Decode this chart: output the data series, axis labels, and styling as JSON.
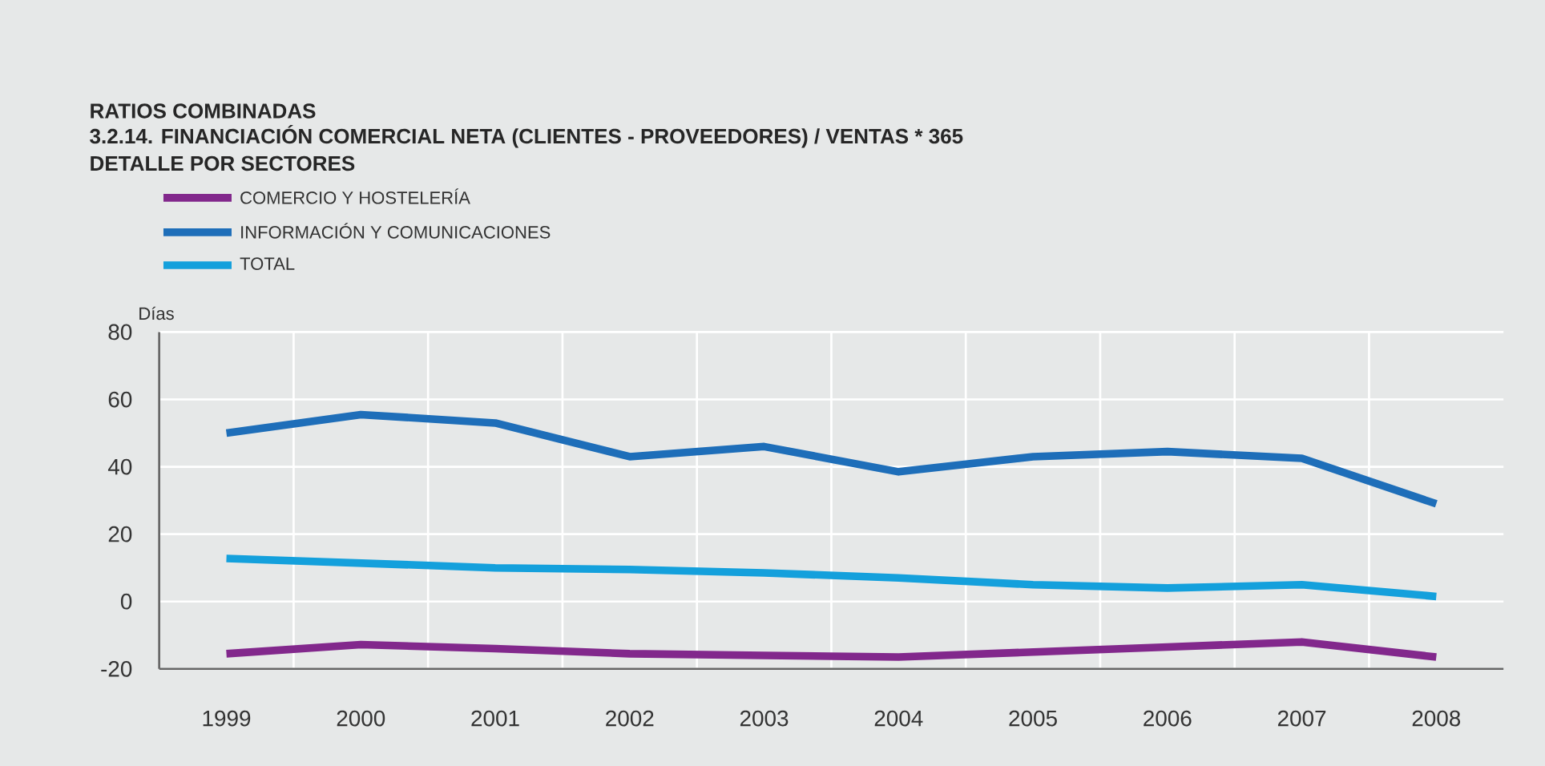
{
  "chart_data": {
    "type": "line",
    "title": "RATIOS COMBINADAS",
    "subtitle": "3.2.14. FINANCIACIÓN COMERCIAL NETA (CLIENTES - PROVEEDORES) / VENTAS * 365\nDETALLE POR SECTORES",
    "ylabel": "Días",
    "categories": [
      "1999",
      "2000",
      "2001",
      "2002",
      "2003",
      "2004",
      "2005",
      "2006",
      "2007",
      "2008"
    ],
    "series": [
      {
        "name": "COMERCIO Y HOSTELERÍA",
        "color": "#82288c",
        "values": [
          -15.5,
          -12.8,
          -14,
          -15.5,
          -16,
          -16.5,
          -15,
          -13.5,
          -12,
          -16.5
        ]
      },
      {
        "name": "INFORMACIÓN Y COMUNICACIONES",
        "color": "#1e6eb9",
        "values": [
          50,
          55.5,
          53,
          43,
          46,
          38.5,
          43,
          44.5,
          42.5,
          29
        ]
      },
      {
        "name": "TOTAL",
        "color": "#14a0dc",
        "values": [
          12.8,
          11.4,
          10,
          9.5,
          8.5,
          7,
          5,
          4,
          5,
          1.5
        ]
      }
    ],
    "ylim": [
      -20,
      80
    ],
    "yticks": [
      -20,
      0,
      20,
      40,
      60,
      80
    ],
    "grid": true,
    "legend": "top left",
    "line_style": "solid",
    "marker": "none"
  }
}
